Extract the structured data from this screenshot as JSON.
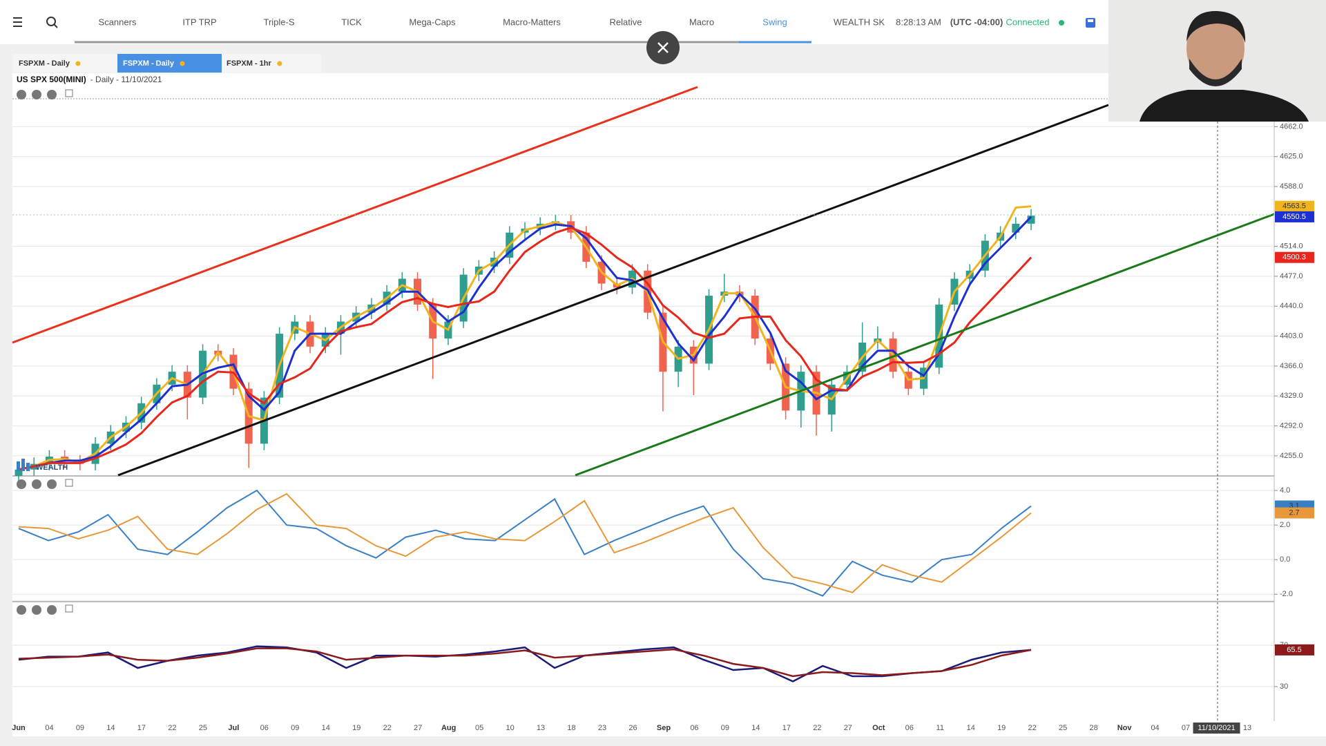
{
  "nav": {
    "items": [
      "Scanners",
      "ITP TRP",
      "Triple-S",
      "TICK",
      "Mega-Caps",
      "Macro-Matters",
      "Relative",
      "Macro",
      "Swing"
    ]
  },
  "status": {
    "account": "WEALTH SK",
    "time": "8:28:13 AM",
    "timezone": "(UTC -04:00)",
    "connection": "Connected"
  },
  "tabs": [
    "FSPXM - Daily",
    "FSPXM - Daily",
    "FSPXM - 1hr"
  ],
  "header": {
    "symbol": "US SPX 500(MINI)",
    "details": "- Daily - 11/10/2021"
  },
  "watermark": "WEALTH",
  "price_panel": {
    "ylim": [
      4231,
      4711
    ],
    "yticks": [
      {
        "value": 4662,
        "label": "4662.0"
      },
      {
        "value": 4625,
        "label": "4625.0"
      },
      {
        "value": 4588,
        "label": "4588.0"
      },
      {
        "value": 4514,
        "label": "4514.0"
      },
      {
        "value": 4477,
        "label": "4477.0"
      },
      {
        "value": 4440,
        "label": "4440.0"
      },
      {
        "value": 4403,
        "label": "4403.0"
      },
      {
        "value": 4366,
        "label": "4366.0"
      },
      {
        "value": 4329,
        "label": "4329.0"
      },
      {
        "value": 4292,
        "label": "4292.0"
      },
      {
        "value": 4255,
        "label": "4255.0"
      }
    ],
    "up_color": "#2f9e8f",
    "down_color": "#f0634f",
    "open": [
      4230,
      4238,
      4245,
      4254,
      4248,
      4245,
      4270,
      4285,
      4296,
      4320,
      4343,
      4359,
      4327,
      4385,
      4380,
      4338,
      4270,
      4327,
      4406,
      4421,
      4390,
      4406,
      4421,
      4432,
      4442,
      4458,
      4474,
      4442,
      4400,
      4421,
      4479,
      4489,
      4500,
      4531,
      4536,
      4542,
      4545,
      4531,
      4495,
      4468,
      4463,
      4484,
      4432,
      4359,
      4390,
      4369,
      4453,
      4458,
      4453,
      4400,
      4369,
      4311,
      4359,
      4306,
      4343,
      4359,
      4395,
      4400,
      4359,
      4338,
      4364,
      4442,
      4474,
      4484,
      4521,
      4531,
      4542
    ],
    "high": [
      4246,
      4253,
      4262,
      4262,
      4256,
      4278,
      4293,
      4304,
      4328,
      4351,
      4367,
      4367,
      4393,
      4393,
      4388,
      4346,
      4335,
      4414,
      4429,
      4429,
      4414,
      4429,
      4440,
      4450,
      4466,
      4482,
      4482,
      4450,
      4429,
      4487,
      4497,
      4508,
      4539,
      4544,
      4550,
      4553,
      4553,
      4539,
      4503,
      4476,
      4492,
      4492,
      4440,
      4398,
      4398,
      4461,
      4480,
      4466,
      4461,
      4408,
      4377,
      4367,
      4367,
      4351,
      4367,
      4420,
      4415,
      4408,
      4367,
      4372,
      4450,
      4482,
      4492,
      4529,
      4539,
      4550,
      4560
    ],
    "low": [
      4222,
      4230,
      4237,
      4240,
      4237,
      4237,
      4262,
      4277,
      4288,
      4312,
      4335,
      4300,
      4319,
      4372,
      4330,
      4240,
      4262,
      4319,
      4398,
      4382,
      4382,
      4380,
      4413,
      4424,
      4434,
      4450,
      4434,
      4350,
      4392,
      4413,
      4471,
      4481,
      4492,
      4523,
      4528,
      4534,
      4523,
      4487,
      4460,
      4455,
      4455,
      4424,
      4310,
      4340,
      4330,
      4361,
      4445,
      4445,
      4392,
      4361,
      4300,
      4290,
      4280,
      4285,
      4335,
      4351,
      4387,
      4351,
      4330,
      4330,
      4356,
      4434,
      4466,
      4476,
      4513,
      4523,
      4534
    ],
    "close": [
      4238,
      4245,
      4254,
      4248,
      4245,
      4270,
      4285,
      4296,
      4320,
      4343,
      4359,
      4327,
      4385,
      4380,
      4338,
      4270,
      4327,
      4406,
      4421,
      4390,
      4406,
      4421,
      4432,
      4442,
      4458,
      4474,
      4442,
      4400,
      4421,
      4479,
      4489,
      4500,
      4531,
      4536,
      4542,
      4545,
      4531,
      4495,
      4468,
      4463,
      4484,
      4432,
      4359,
      4390,
      4369,
      4453,
      4458,
      4453,
      4400,
      4369,
      4311,
      4359,
      4306,
      4343,
      4359,
      4395,
      4400,
      4359,
      4338,
      4364,
      4442,
      4474,
      4484,
      4521,
      4531,
      4542,
      4552
    ],
    "lines": [
      {
        "color": "#f0b51e",
        "values": [
          4238,
          4242,
          4250,
          4251,
          4247,
          4258,
          4278,
          4291,
          4308,
          4332,
          4351,
          4343,
          4356,
          4383,
          4359,
          4304,
          4299,
          4367,
          4414,
          4406,
          4398,
          4414,
          4427,
          4437,
          4450,
          4466,
          4458,
          4421,
          4411,
          4450,
          4484,
          4495,
          4516,
          4534,
          4539,
          4544,
          4538,
          4513,
          4482,
          4466,
          4474,
          4458,
          4396,
          4375,
          4380,
          4411,
          4456,
          4456,
          4427,
          4385,
          4340,
          4335,
          4333,
          4325,
          4351,
          4377,
          4398,
          4380,
          4349,
          4351,
          4403,
          4458,
          4479,
          4503,
          4526,
          4562,
          4563.5
        ]
      },
      {
        "color": "#1c2fd1",
        "values": [
          4238,
          4242,
          4246,
          4249,
          4249,
          4254,
          4267,
          4284,
          4300,
          4320,
          4341,
          4343,
          4357,
          4364,
          4368,
          4329,
          4312,
          4334,
          4385,
          4406,
          4406,
          4406,
          4420,
          4432,
          4444,
          4458,
          4458,
          4439,
          4421,
          4433,
          4463,
          4489,
          4507,
          4522,
          4536,
          4541,
          4539,
          4524,
          4498,
          4475,
          4472,
          4460,
          4425,
          4394,
          4373,
          4404,
          4427,
          4455,
          4437,
          4407,
          4360,
          4346,
          4325,
          4336,
          4336,
          4366,
          4385,
          4385,
          4366,
          4354,
          4381,
          4427,
          4467,
          4493,
          4512,
          4531,
          4550.5
        ]
      },
      {
        "color": "#e8261b",
        "values": [
          4238,
          4242,
          4246,
          4246,
          4246,
          4252,
          4260,
          4269,
          4283,
          4303,
          4321,
          4329,
          4347,
          4359,
          4358,
          4332,
          4320,
          4344,
          4352,
          4363,
          4390,
          4409,
          4414,
          4418,
          4432,
          4445,
          4450,
          4443,
          4439,
          4443,
          4446,
          4458,
          4484,
          4507,
          4520,
          4531,
          4537,
          4530,
          4516,
          4500,
          4488,
          4468,
          4441,
          4426,
          4407,
          4401,
          4406,
          4425,
          4427,
          4427,
          4398,
          4378,
          4349,
          4338,
          4336,
          4353,
          4361,
          4371,
          4370,
          4371,
          4381,
          4395,
          4420,
          4440,
          4460,
          4480,
          4500.3
        ]
      }
    ]
  },
  "osc_panel": {
    "ylim": [
      -2.35,
      4.8
    ],
    "yticks": [
      {
        "value": 4,
        "label": "4.0"
      },
      {
        "value": 2,
        "label": "2.0"
      },
      {
        "value": 0,
        "label": "0.0"
      },
      {
        "value": -2,
        "label": "-2.0"
      }
    ],
    "lines": [
      {
        "color": "#3a7fc4",
        "values": [
          1.8,
          1.1,
          1.6,
          2.6,
          0.6,
          0.3,
          1.6,
          3.0,
          4.0,
          2.0,
          1.8,
          0.8,
          0.1,
          1.3,
          1.7,
          1.2,
          1.1,
          2.3,
          3.5,
          0.3,
          1.1,
          1.8,
          2.5,
          3.1,
          0.6,
          -1.1,
          -1.4,
          -2.1,
          -0.1,
          -0.9,
          -1.3,
          0.0,
          0.3,
          1.8,
          3.1
        ]
      },
      {
        "color": "#e8973a",
        "values": [
          1.9,
          1.8,
          1.2,
          1.7,
          2.5,
          0.6,
          0.3,
          1.5,
          2.9,
          3.8,
          2.0,
          1.8,
          0.8,
          0.2,
          1.3,
          1.6,
          1.2,
          1.1,
          2.2,
          3.4,
          0.4,
          1.0,
          1.7,
          2.4,
          3.0,
          0.7,
          -1.0,
          -1.4,
          -1.9,
          -0.3,
          -0.9,
          -1.3,
          0.0,
          1.3,
          2.7
        ]
      }
    ]
  },
  "rsi_panel": {
    "ylim": [
      -3.5,
      111.6
    ],
    "yticks": [
      70,
      30
    ],
    "lines": [
      {
        "color": "#1a1a7a",
        "values": [
          56,
          59,
          59,
          63,
          48,
          55,
          60,
          63,
          69,
          68,
          63,
          48,
          60,
          60,
          59,
          61,
          64,
          68,
          48,
          60,
          63,
          66,
          68,
          56,
          46,
          48,
          35,
          50,
          40,
          40,
          43,
          45,
          56,
          63,
          65.5
        ]
      },
      {
        "color": "#8b1a1a",
        "values": [
          57,
          58,
          59,
          61,
          56,
          55,
          58,
          62,
          67,
          67,
          64,
          56,
          58,
          60,
          60,
          60,
          62,
          65,
          58,
          60,
          62,
          64,
          66,
          60,
          52,
          48,
          40,
          44,
          43,
          41,
          43,
          45,
          51,
          60,
          65.5
        ]
      }
    ]
  },
  "x_labels": [
    "Jun",
    "04",
    "09",
    "14",
    "17",
    "22",
    "25",
    "Jul",
    "06",
    "09",
    "14",
    "19",
    "22",
    "27",
    "Aug",
    "05",
    "10",
    "13",
    "18",
    "23",
    "26",
    "Sep",
    "06",
    "09",
    "14",
    "17",
    "22",
    "27",
    "Oct",
    "06",
    "11",
    "14",
    "19",
    "22",
    "25",
    "28",
    "Nov",
    "04",
    "07",
    "11/10/2021",
    "13"
  ]
}
